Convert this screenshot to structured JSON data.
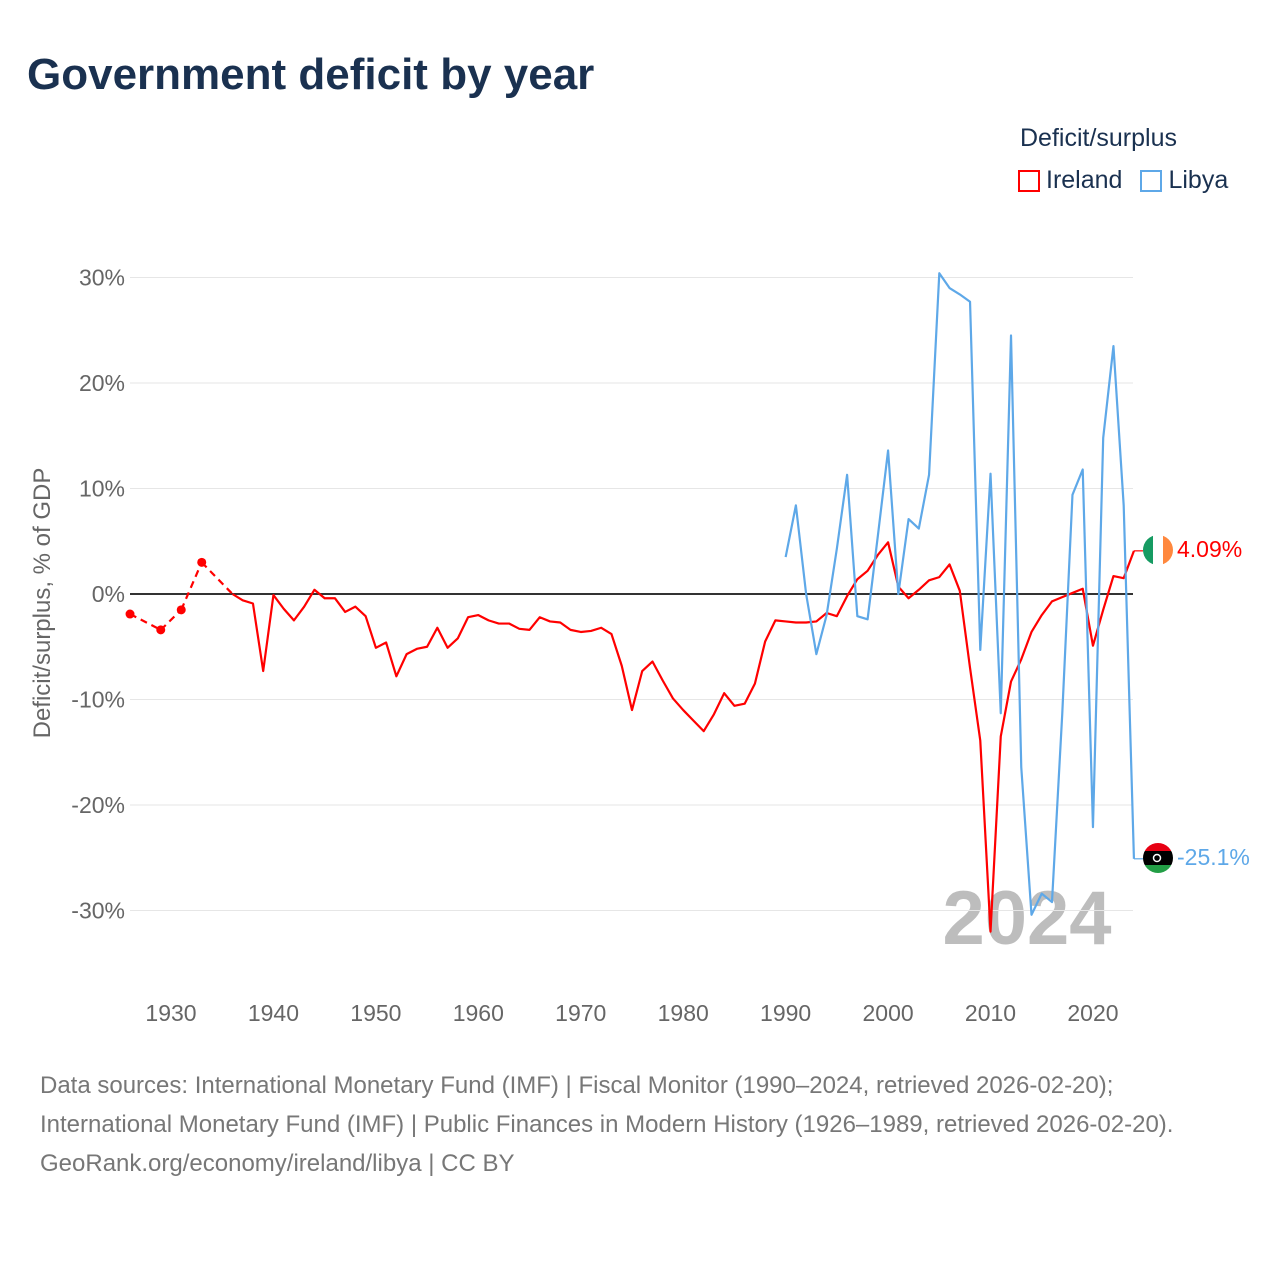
{
  "title": "Government deficit by year",
  "legend": {
    "title": "Deficit/surplus",
    "items": [
      {
        "name": "Ireland",
        "color": "#ff0000"
      },
      {
        "name": "Libya",
        "color": "#5ea8e8"
      }
    ]
  },
  "year_watermark": "2024",
  "end_labels": {
    "ireland": "4.09%",
    "libya": "-25.1%"
  },
  "source": {
    "line1": "Data sources: International Monetary Fund (IMF) | Fiscal Monitor (1990–2024, retrieved 2026-02-20); International Monetary Fund (IMF) | Public Finances in Modern History (1926–1989, retrieved 2026-02-20).",
    "line2": "GeoRank.org/economy/ireland/libya | CC BY"
  },
  "chart_data": {
    "type": "line",
    "title": "Government deficit by year",
    "xlabel": "",
    "ylabel": "Deficit/surplus, % of GDP",
    "xlim": [
      1926,
      2024
    ],
    "ylim": [
      -35,
      32
    ],
    "x_ticks": [
      1930,
      1940,
      1950,
      1960,
      1970,
      1980,
      1990,
      2000,
      2010,
      2020
    ],
    "y_ticks": [
      30,
      20,
      10,
      0,
      -10,
      -20,
      -30
    ],
    "y_tick_labels": [
      "30%",
      "20%",
      "10%",
      "0%",
      "-10%",
      "-20%",
      "-30%"
    ],
    "grid": true,
    "legend_position": "top-right",
    "series": [
      {
        "name": "Ireland",
        "color": "#ff0000",
        "points": [
          [
            1926,
            -1.9
          ],
          [
            1929,
            -3.4
          ],
          [
            1931,
            -1.5
          ],
          [
            1933,
            3.0
          ],
          [
            1936,
            0.0
          ],
          [
            1937,
            -0.6
          ],
          [
            1938,
            -0.9
          ],
          [
            1939,
            -7.3
          ],
          [
            1940,
            -0.1
          ],
          [
            1941,
            -1.4
          ],
          [
            1942,
            -2.5
          ],
          [
            1943,
            -1.2
          ],
          [
            1944,
            0.4
          ],
          [
            1945,
            -0.4
          ],
          [
            1946,
            -0.4
          ],
          [
            1947,
            -1.7
          ],
          [
            1948,
            -1.2
          ],
          [
            1949,
            -2.1
          ],
          [
            1950,
            -5.1
          ],
          [
            1951,
            -4.6
          ],
          [
            1952,
            -7.8
          ],
          [
            1953,
            -5.7
          ],
          [
            1954,
            -5.2
          ],
          [
            1955,
            -5.0
          ],
          [
            1956,
            -3.2
          ],
          [
            1957,
            -5.1
          ],
          [
            1958,
            -4.2
          ],
          [
            1959,
            -2.2
          ],
          [
            1960,
            -2.0
          ],
          [
            1961,
            -2.5
          ],
          [
            1962,
            -2.8
          ],
          [
            1963,
            -2.8
          ],
          [
            1964,
            -3.3
          ],
          [
            1965,
            -3.4
          ],
          [
            1966,
            -2.2
          ],
          [
            1967,
            -2.6
          ],
          [
            1968,
            -2.7
          ],
          [
            1969,
            -3.4
          ],
          [
            1970,
            -3.6
          ],
          [
            1971,
            -3.5
          ],
          [
            1972,
            -3.2
          ],
          [
            1973,
            -3.8
          ],
          [
            1974,
            -6.8
          ],
          [
            1975,
            -11.0
          ],
          [
            1976,
            -7.3
          ],
          [
            1977,
            -6.4
          ],
          [
            1978,
            -8.2
          ],
          [
            1979,
            -9.9
          ],
          [
            1980,
            -11.0
          ],
          [
            1981,
            -12.0
          ],
          [
            1982,
            -13.0
          ],
          [
            1983,
            -11.4
          ],
          [
            1984,
            -9.4
          ],
          [
            1985,
            -10.6
          ],
          [
            1986,
            -10.4
          ],
          [
            1987,
            -8.5
          ],
          [
            1988,
            -4.5
          ],
          [
            1989,
            -2.5
          ],
          [
            1990,
            -2.6
          ],
          [
            1991,
            -2.7
          ],
          [
            1992,
            -2.7
          ],
          [
            1993,
            -2.6
          ],
          [
            1994,
            -1.8
          ],
          [
            1995,
            -2.1
          ],
          [
            1996,
            -0.2
          ],
          [
            1997,
            1.4
          ],
          [
            1998,
            2.2
          ],
          [
            1999,
            3.7
          ],
          [
            2000,
            4.9
          ],
          [
            2001,
            0.7
          ],
          [
            2002,
            -0.4
          ],
          [
            2003,
            0.4
          ],
          [
            2004,
            1.3
          ],
          [
            2005,
            1.6
          ],
          [
            2006,
            2.8
          ],
          [
            2007,
            0.3
          ],
          [
            2008,
            -7.0
          ],
          [
            2009,
            -13.9
          ],
          [
            2010,
            -32.0
          ],
          [
            2011,
            -13.5
          ],
          [
            2012,
            -8.3
          ],
          [
            2013,
            -6.2
          ],
          [
            2014,
            -3.6
          ],
          [
            2015,
            -2.0
          ],
          [
            2016,
            -0.7
          ],
          [
            2017,
            -0.3
          ],
          [
            2018,
            0.1
          ],
          [
            2019,
            0.5
          ],
          [
            2020,
            -4.9
          ],
          [
            2021,
            -1.5
          ],
          [
            2022,
            1.7
          ],
          [
            2023,
            1.5
          ],
          [
            2024,
            4.09
          ]
        ]
      },
      {
        "name": "Libya",
        "color": "#5ea8e8",
        "points": [
          [
            1990,
            3.5
          ],
          [
            1991,
            8.4
          ],
          [
            1992,
            0.0
          ],
          [
            1993,
            -5.7
          ],
          [
            1994,
            -2.0
          ],
          [
            1995,
            4.3
          ],
          [
            1996,
            11.3
          ],
          [
            1997,
            -2.1
          ],
          [
            1998,
            -2.4
          ],
          [
            1999,
            5.5
          ],
          [
            2000,
            13.6
          ],
          [
            2001,
            0.0
          ],
          [
            2002,
            7.1
          ],
          [
            2003,
            6.2
          ],
          [
            2004,
            11.3
          ],
          [
            2005,
            30.4
          ],
          [
            2006,
            29.0
          ],
          [
            2007,
            28.4
          ],
          [
            2008,
            27.7
          ],
          [
            2009,
            -5.3
          ],
          [
            2010,
            11.4
          ],
          [
            2011,
            -11.3
          ],
          [
            2012,
            24.5
          ],
          [
            2013,
            -16.4
          ],
          [
            2014,
            -30.4
          ],
          [
            2015,
            -28.4
          ],
          [
            2016,
            -29.2
          ],
          [
            2017,
            -11.4
          ],
          [
            2018,
            9.4
          ],
          [
            2019,
            11.8
          ],
          [
            2020,
            -22.1
          ],
          [
            2021,
            14.8
          ],
          [
            2022,
            23.5
          ],
          [
            2023,
            8.4
          ],
          [
            2024,
            -25.1
          ]
        ]
      }
    ]
  }
}
